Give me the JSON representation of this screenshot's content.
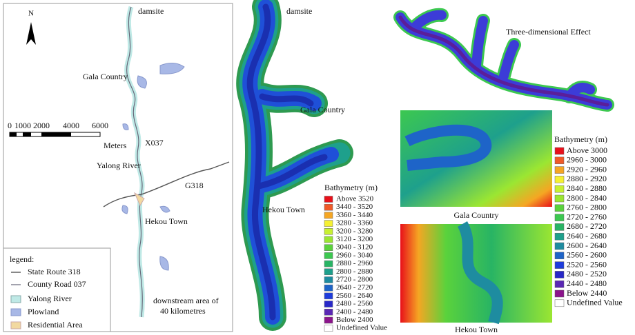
{
  "left_map": {
    "north": "N",
    "labels": {
      "damsite": "damsite",
      "gala": "Gala Country",
      "x037": "X037",
      "yalong": "Yalong River",
      "g318": "G318",
      "hekou": "Hekou Town",
      "downstream": [
        "downstream area of",
        "40 kilometres"
      ]
    },
    "scale_bar": {
      "labels": [
        "0",
        "1000",
        "2000",
        "4000",
        "6000"
      ],
      "unit": "Meters"
    },
    "legend": {
      "title": "legend:",
      "items": [
        "State Route 318",
        "County Road 037",
        "Yalong River",
        "Plowland",
        "Residential Area"
      ]
    }
  },
  "bathymetry_map": {
    "labels": {
      "damsite": "damsite",
      "gala": "Gala Country",
      "hekou": "Hekou Town"
    },
    "legend": {
      "title": "Bathymetry (m)",
      "items": [
        {
          "label": "Above 3520",
          "color": "#e8101a"
        },
        {
          "label": "3440 - 3520",
          "color": "#f05a28"
        },
        {
          "label": "3360 - 3440",
          "color": "#f5a623"
        },
        {
          "label": "3280 - 3360",
          "color": "#f5f032"
        },
        {
          "label": "3200 - 3280",
          "color": "#c8f032"
        },
        {
          "label": "3120 - 3200",
          "color": "#9be632"
        },
        {
          "label": "3040 - 3120",
          "color": "#5ad23c"
        },
        {
          "label": "2960 - 3040",
          "color": "#3cc850"
        },
        {
          "label": "2880 - 2960",
          "color": "#28b464"
        },
        {
          "label": "2800 - 2880",
          "color": "#1ea08c"
        },
        {
          "label": "2720 - 2800",
          "color": "#1e8ca0"
        },
        {
          "label": "2640 - 2720",
          "color": "#1e64c8"
        },
        {
          "label": "2560 - 2640",
          "color": "#1e3cdc"
        },
        {
          "label": "2480 - 2560",
          "color": "#2828c8"
        },
        {
          "label": "2400 - 2480",
          "color": "#5a28b4"
        },
        {
          "label": "Below 2400",
          "color": "#8c148c"
        },
        {
          "label": "Undefined Value",
          "color": "#ffffff"
        }
      ]
    }
  },
  "three_d": {
    "caption": "Three-dimensional Effect"
  },
  "detail_maps": {
    "gala_caption": "Gala Country",
    "hekou_caption": "Hekou Town",
    "legend": {
      "title": "Bathymetry (m)",
      "items": [
        {
          "label": "Above 3000",
          "color": "#e8101a"
        },
        {
          "label": "2960 - 3000",
          "color": "#f05a28"
        },
        {
          "label": "2920 - 2960",
          "color": "#f5a623"
        },
        {
          "label": "2880 - 2920",
          "color": "#f5f032"
        },
        {
          "label": "2840 - 2880",
          "color": "#c8f032"
        },
        {
          "label": "2800 - 2840",
          "color": "#9be632"
        },
        {
          "label": "2760 - 2800",
          "color": "#5ad23c"
        },
        {
          "label": "2720 - 2760",
          "color": "#3cc850"
        },
        {
          "label": "2680 - 2720",
          "color": "#28b464"
        },
        {
          "label": "2640 - 2680",
          "color": "#1ea08c"
        },
        {
          "label": "2600 - 2640",
          "color": "#1e8ca0"
        },
        {
          "label": "2560 - 2600",
          "color": "#1e64c8"
        },
        {
          "label": "2520 - 2560",
          "color": "#1e3cdc"
        },
        {
          "label": "2480 - 2520",
          "color": "#2828c8"
        },
        {
          "label": "2440 - 2480",
          "color": "#5a28b4"
        },
        {
          "label": "Below 2440",
          "color": "#8c148c"
        },
        {
          "label": "Undefined Value",
          "color": "#ffffff"
        }
      ]
    }
  }
}
